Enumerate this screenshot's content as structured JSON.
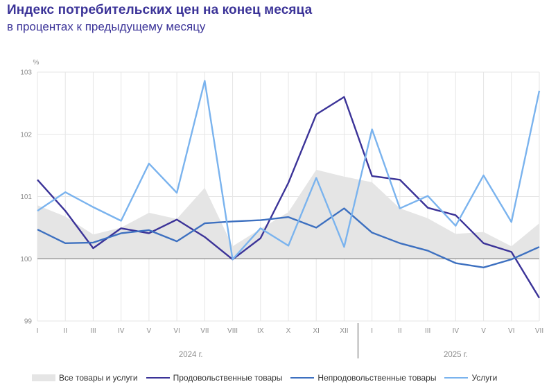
{
  "header": {
    "title": "Индекс потребительских цен на конец месяца",
    "subtitle": "в процентах к предыдущему месяцу"
  },
  "chart_data": {
    "type": "line",
    "unit_label": "%",
    "ylim": [
      99,
      103
    ],
    "yticks": [
      99,
      100,
      101,
      102,
      103
    ],
    "baseline": 100,
    "categories": [
      "I",
      "II",
      "III",
      "IV",
      "V",
      "VI",
      "VII",
      "VIII",
      "IX",
      "X",
      "XI",
      "XII",
      "I",
      "II",
      "III",
      "IV",
      "V",
      "VI",
      "VII"
    ],
    "years": [
      {
        "label": "2024 г.",
        "start": 0,
        "end": 11
      },
      {
        "label": "2025 г.",
        "start": 12,
        "end": 18
      }
    ],
    "series": [
      {
        "name": "Все товары и услуги",
        "kind": "area",
        "color": "#e5e5e5",
        "values": [
          100.86,
          100.68,
          100.39,
          100.5,
          100.74,
          100.64,
          101.14,
          100.2,
          100.48,
          100.75,
          101.43,
          101.32,
          101.23,
          100.81,
          100.65,
          100.4,
          100.43,
          100.2,
          100.57
        ]
      },
      {
        "name": "Продовольственные товары",
        "kind": "line",
        "color": "#3b3398",
        "values": [
          101.27,
          100.77,
          100.17,
          100.49,
          100.41,
          100.63,
          100.35,
          99.99,
          100.33,
          101.22,
          102.32,
          102.6,
          101.33,
          101.27,
          100.82,
          100.7,
          100.25,
          100.11,
          99.37
        ]
      },
      {
        "name": "Непродовольственные товары",
        "kind": "line",
        "color": "#3d70c0",
        "values": [
          100.47,
          100.25,
          100.26,
          100.41,
          100.46,
          100.28,
          100.57,
          100.6,
          100.62,
          100.67,
          100.5,
          100.81,
          100.42,
          100.25,
          100.13,
          99.93,
          99.86,
          99.99,
          100.19
        ]
      },
      {
        "name": "Услуги",
        "kind": "line",
        "color": "#7ab3ee",
        "values": [
          100.77,
          101.07,
          100.83,
          100.61,
          101.53,
          101.06,
          102.86,
          99.99,
          100.49,
          100.21,
          101.3,
          100.19,
          102.08,
          100.81,
          101.01,
          100.53,
          101.34,
          100.59,
          102.7
        ]
      }
    ]
  }
}
